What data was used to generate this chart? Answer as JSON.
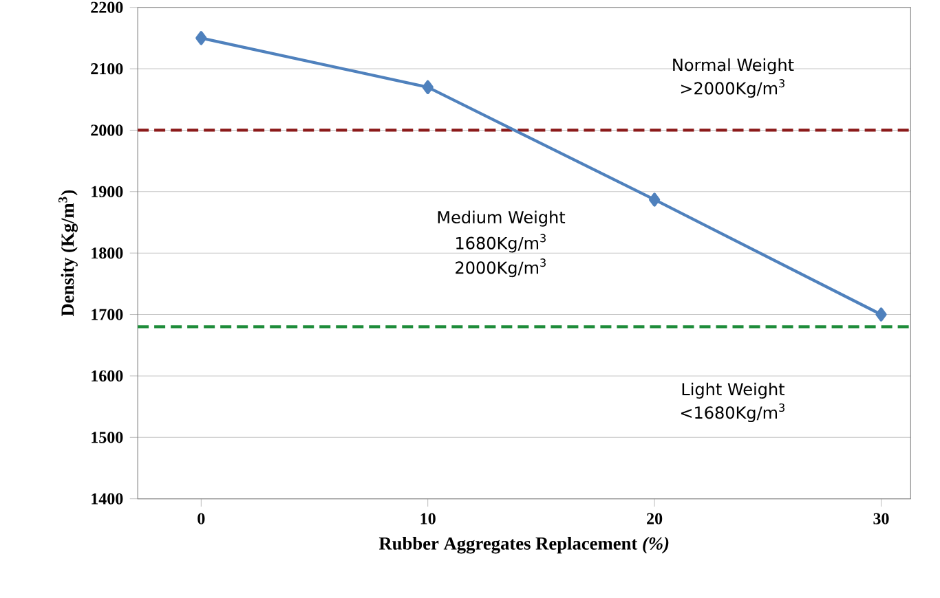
{
  "chart_data": {
    "type": "line",
    "xlabel": "Rubber Aggregates Replacement *(%)*",
    "ylabel": "Density (Kg/m$^{3}$)",
    "x": [
      0,
      10,
      20,
      30
    ],
    "series": [
      {
        "color": "#4f81bd",
        "values": [
          2150,
          2070,
          1887,
          1700
        ]
      }
    ],
    "xlim": [
      -2.8,
      31.3
    ],
    "xticks": [
      0,
      10,
      20,
      30
    ],
    "ylim": [
      1400,
      2200
    ],
    "yticks": [
      1400,
      1500,
      1600,
      1700,
      1800,
      1900,
      2000,
      2100,
      2200
    ],
    "grid": "y",
    "marker": "diamond",
    "line_style": "solid",
    "ref_lines": [
      {
        "axis": "y",
        "value": 2000,
        "color": "#8b1a1a",
        "line_style": "dashed"
      },
      {
        "axis": "y",
        "value": 1680,
        "color": "#1e8c3a",
        "line_style": "dashed"
      }
    ],
    "annotations": [
      "Normal Weight",
      ">2000Kg/m$^{3}$",
      "Medium Weight",
      "1680Kg/m$^{3}$",
      "2000Kg/m$^{3}$",
      "Light Weight",
      "<1680Kg/m$^{3}$"
    ]
  }
}
